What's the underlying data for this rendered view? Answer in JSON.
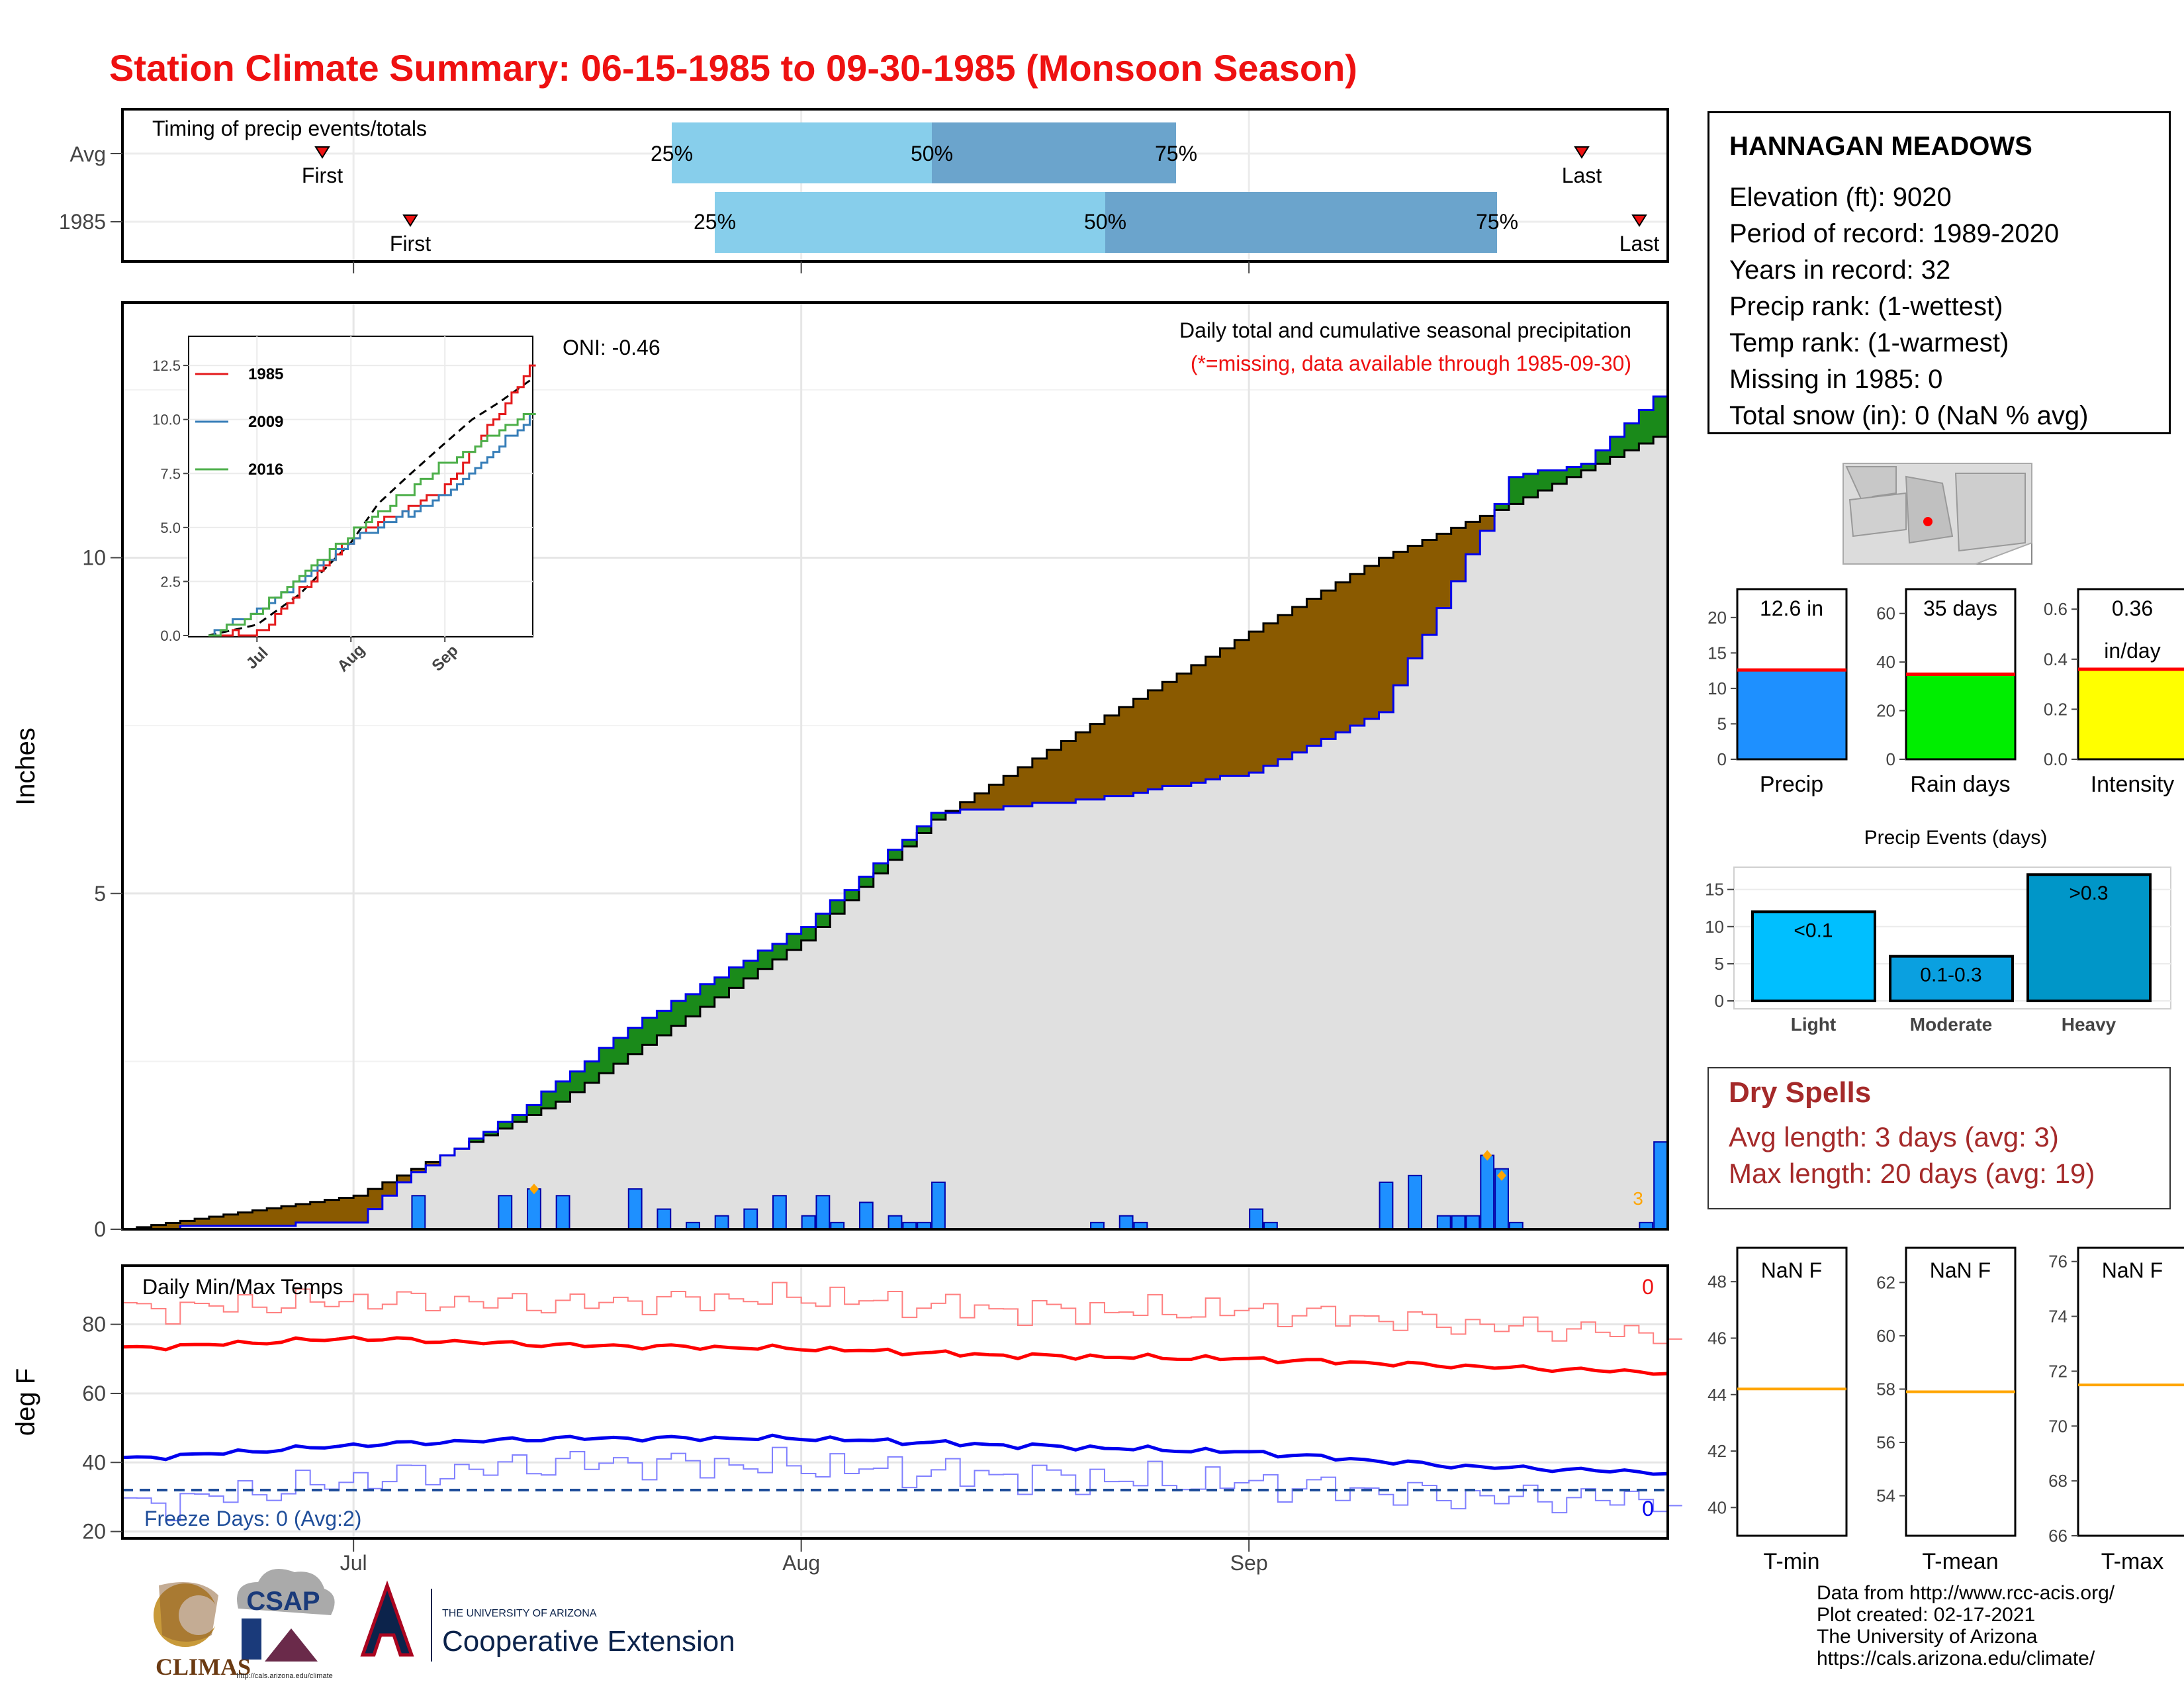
{
  "title": "Station Climate Summary: 06-15-1985 to 09-30-1985 (Monsoon Season)",
  "colors": {
    "title": "#ee1111",
    "above_avg": "#8a5a00",
    "below_avg": "#1a8a1a",
    "daily_bar": "#1e90ff",
    "max_temp": "#ff0000",
    "min_temp": "#0000ee"
  },
  "timing_panel": {
    "label": "Timing of precip events/totals",
    "rows": [
      {
        "name": "Avg",
        "first_label": "First",
        "last_label": "Last",
        "p25": "25%",
        "p50": "50%",
        "p75": "75%"
      },
      {
        "name": "1985",
        "first_label": "First",
        "last_label": "Last",
        "p25": "25%",
        "p50": "50%",
        "p75": "75%"
      }
    ]
  },
  "precip_panel": {
    "title": "Daily total and cumulative seasonal precipitation",
    "subtitle": "(*=missing, data available through 1985-09-30)",
    "oni": "ONI: -0.46",
    "ylabel": "Inches",
    "y_ticks": [
      "0",
      "5",
      "10"
    ],
    "missing_count": "3"
  },
  "inset": {
    "y_ticks": [
      "0.0",
      "2.5",
      "5.0",
      "7.5",
      "10.0",
      "12.5"
    ],
    "x_ticks": [
      "Jul",
      "Aug",
      "Sep"
    ],
    "legend": [
      "1985",
      "2009",
      "2016"
    ]
  },
  "temp_panel": {
    "label": "Daily Min/Max Temps",
    "ylabel": "deg F",
    "y_ticks": [
      "20",
      "40",
      "60",
      "80"
    ],
    "freeze_label": "Freeze Days: 0 (Avg:2)",
    "max_count": "0",
    "min_count": "0"
  },
  "x_ticks": [
    "Jul",
    "Aug",
    "Sep"
  ],
  "station": {
    "name": "HANNAGAN MEADOWS",
    "lines": [
      "Elevation (ft): 9020",
      "Period of record: 1989-2020",
      "Years in record: 32",
      "Precip rank:  (1-wettest)",
      "Temp rank:  (1-warmest)",
      "Missing in 1985: 0",
      "Total snow (in): 0 (NaN % avg)"
    ]
  },
  "gauges": [
    {
      "label": "Precip",
      "value_text": "12.6 in",
      "ticks": [
        "0",
        "5",
        "10",
        "15",
        "20"
      ]
    },
    {
      "label": "Rain days",
      "value_text": "35 days",
      "ticks": [
        "0",
        "20",
        "40",
        "60"
      ]
    },
    {
      "label": "Intensity",
      "value_text": "0.36",
      "value_text2": "in/day",
      "ticks": [
        "0.0",
        "0.2",
        "0.4",
        "0.6"
      ]
    }
  ],
  "events": {
    "title": "Precip Events (days)",
    "ticks": [
      "0",
      "5",
      "10",
      "15"
    ],
    "bars": [
      {
        "label": "Light",
        "value_label": "<0.1"
      },
      {
        "label": "Moderate",
        "value_label": "0.1-0.3"
      },
      {
        "label": "Heavy",
        "value_label": ">0.3"
      }
    ]
  },
  "dry_spells": {
    "title": "Dry Spells",
    "avg": "Avg length: 3 days (avg: 3)",
    "max": "Max length: 20 days (avg: 19)"
  },
  "temp_gauges": [
    {
      "label": "T-min",
      "value_text": "NaN F",
      "ticks": [
        "40",
        "42",
        "44",
        "46",
        "48"
      ]
    },
    {
      "label": "T-mean",
      "value_text": "NaN F",
      "ticks": [
        "54",
        "56",
        "58",
        "60",
        "62"
      ]
    },
    {
      "label": "T-max",
      "value_text": "NaN F",
      "ticks": [
        "66",
        "68",
        "70",
        "72",
        "74",
        "76"
      ]
    }
  ],
  "credits": [
    "Data from http://www.rcc-acis.org/",
    "Plot created: 02-17-2021",
    "The University of Arizona",
    "https://cals.arizona.edu/climate/"
  ],
  "logos": {
    "climas": "CLIMAS",
    "csap": "CSAP",
    "csap_url": "http://cals.arizona.edu/climate",
    "ua_small": "THE UNIVERSITY OF ARIZONA",
    "ua_ext": "Cooperative Extension"
  },
  "chart_data": [
    {
      "type": "area",
      "title": "Daily total and cumulative seasonal precipitation",
      "ylabel": "Inches",
      "ylim": [
        0,
        13.8
      ],
      "x_range": [
        "1985-06-15",
        "1985-09-30"
      ],
      "series": [
        {
          "name": "avg_cumulative",
          "x": [
            "1985-06-15",
            "1985-07-01",
            "1985-07-15",
            "1985-08-01",
            "1985-08-10",
            "1985-08-20",
            "1985-09-01",
            "1985-09-10",
            "1985-09-19",
            "1985-09-24",
            "1985-09-30"
          ],
          "values": [
            0,
            0.5,
            1.9,
            4.3,
            6.1,
            7.4,
            8.9,
            10.0,
            10.8,
            11.3,
            11.9
          ]
        },
        {
          "name": "1985_cumulative",
          "x": [
            "1985-06-15",
            "1985-07-01",
            "1985-07-04",
            "1985-07-12",
            "1985-07-20",
            "1985-08-01",
            "1985-08-10",
            "1985-08-21",
            "1985-09-01",
            "1985-09-10",
            "1985-09-19",
            "1985-09-24",
            "1985-09-30"
          ],
          "values": [
            0,
            0.1,
            0.7,
            1.7,
            3.0,
            4.5,
            6.2,
            6.4,
            6.8,
            7.7,
            11.2,
            11.4,
            12.6
          ]
        }
      ],
      "daily": {
        "x": [
          "1985-07-05",
          "1985-07-11",
          "1985-07-13",
          "1985-07-15",
          "1985-07-20",
          "1985-07-22",
          "1985-07-24",
          "1985-07-26",
          "1985-07-28",
          "1985-07-30",
          "1985-08-01",
          "1985-08-02",
          "1985-08-03",
          "1985-08-05",
          "1985-08-07",
          "1985-08-08",
          "1985-08-09",
          "1985-08-10",
          "1985-08-21",
          "1985-08-23",
          "1985-08-24",
          "1985-09-01",
          "1985-09-02",
          "1985-09-10",
          "1985-09-12",
          "1985-09-14",
          "1985-09-15",
          "1985-09-16",
          "1985-09-17",
          "1985-09-18",
          "1985-09-19",
          "1985-09-28",
          "1985-09-29"
        ],
        "values": [
          0.5,
          0.5,
          0.6,
          0.5,
          0.6,
          0.3,
          0.1,
          0.2,
          0.3,
          0.5,
          0.2,
          0.5,
          0.1,
          0.4,
          0.2,
          0.1,
          0.1,
          0.7,
          0.1,
          0.2,
          0.1,
          0.3,
          0.1,
          0.7,
          0.8,
          0.2,
          0.2,
          0.2,
          1.1,
          0.9,
          0.1,
          0.1,
          1.3
        ]
      }
    },
    {
      "type": "line",
      "title": "Daily Min/Max Temps",
      "ylabel": "deg F",
      "ylim": [
        18,
        97
      ],
      "series": [
        {
          "name": "max_avg",
          "x": [
            "1985-06-15",
            "1985-07-01",
            "1985-07-15",
            "1985-08-01",
            "1985-08-15",
            "1985-09-01",
            "1985-09-15",
            "1985-09-30"
          ],
          "values": [
            73,
            76,
            74,
            73,
            71,
            70,
            68,
            66
          ]
        },
        {
          "name": "min_avg",
          "x": [
            "1985-06-15",
            "1985-07-01",
            "1985-07-15",
            "1985-08-01",
            "1985-08-15",
            "1985-09-01",
            "1985-09-15",
            "1985-09-30"
          ],
          "values": [
            41,
            45,
            47,
            47,
            45,
            43,
            39,
            37
          ]
        },
        {
          "name": "max_daily",
          "x": [
            "1985-06-15",
            "1985-07-01",
            "1985-07-15",
            "1985-08-01",
            "1985-08-15",
            "1985-09-01",
            "1985-09-15",
            "1985-09-30"
          ],
          "values": [
            84,
            87,
            86,
            88,
            84,
            84,
            80,
            77
          ]
        },
        {
          "name": "min_daily",
          "x": [
            "1985-06-15",
            "1985-07-01",
            "1985-07-15",
            "1985-08-01",
            "1985-08-15",
            "1985-09-01",
            "1985-09-15",
            "1985-09-30"
          ],
          "values": [
            27,
            35,
            40,
            39,
            36,
            34,
            30,
            29
          ]
        }
      ],
      "freeze_line": 32
    },
    {
      "type": "line",
      "legend": [
        "1985",
        "2009",
        "2016"
      ],
      "ylim": [
        0,
        12.5
      ],
      "series": [
        {
          "name": "1985",
          "x": [
            "1985-06-15",
            "1985-07-01",
            "1985-08-01",
            "1985-09-01",
            "1985-09-30"
          ],
          "values": [
            0,
            0.1,
            4.5,
            6.8,
            12.6
          ]
        },
        {
          "name": "2009",
          "x": [
            "1985-06-15",
            "1985-07-01",
            "1985-08-01",
            "1985-09-01",
            "1985-09-30"
          ],
          "values": [
            0,
            1.1,
            4.4,
            6.5,
            10.2
          ]
        },
        {
          "name": "2016",
          "x": [
            "1985-06-15",
            "1985-07-01",
            "1985-08-01",
            "1985-09-01",
            "1985-09-30"
          ],
          "values": [
            0,
            1.1,
            4.7,
            8.0,
            10.4
          ]
        }
      ]
    },
    {
      "type": "bar",
      "title": "Precip Events (days)",
      "categories": [
        "Light",
        "Moderate",
        "Heavy"
      ],
      "values": [
        12,
        6,
        17
      ],
      "ylim": [
        0,
        18
      ]
    },
    {
      "type": "bar",
      "categories": [
        "Precip",
        "Rain days",
        "Intensity"
      ],
      "values": [
        12.6,
        35,
        0.36
      ],
      "averages": [
        12.6,
        35,
        0.36
      ]
    }
  ]
}
